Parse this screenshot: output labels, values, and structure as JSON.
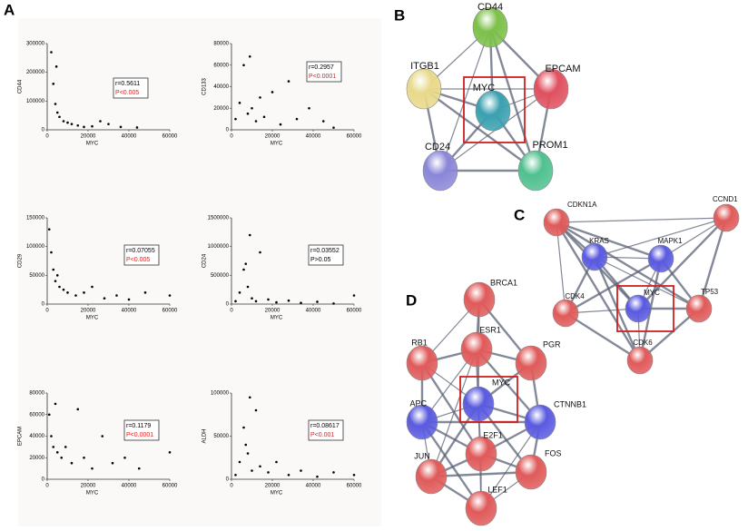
{
  "panel_labels": [
    "A",
    "B",
    "C",
    "D"
  ],
  "chart_data": [
    {
      "type": "scatter",
      "xlabel": "MYC",
      "ylabel": "CD44",
      "xlim": [
        0,
        60000
      ],
      "xticks": [
        0,
        20000,
        40000,
        60000
      ],
      "ylim": [
        0,
        300000
      ],
      "yticks": [
        0,
        100000,
        200000,
        300000
      ],
      "color": "#000000",
      "annotations": [
        {
          "text": "r=0.5611",
          "color": "#000000"
        },
        {
          "text": "P<0.005",
          "color": "#e02020"
        }
      ],
      "x": [
        2000,
        3000,
        4000,
        5000,
        6000,
        8000,
        10000,
        12000,
        15000,
        18000,
        22000,
        26000,
        30000,
        36000,
        44000,
        4500
      ],
      "values": [
        270000,
        160000,
        90000,
        60000,
        45000,
        30000,
        25000,
        20000,
        15000,
        10000,
        12000,
        30000,
        20000,
        10000,
        8000,
        220000
      ]
    },
    {
      "type": "scatter",
      "xlabel": "MYC",
      "ylabel": "CD133",
      "xlim": [
        0,
        60000
      ],
      "xticks": [
        0,
        20000,
        40000,
        60000
      ],
      "ylim": [
        0,
        80000
      ],
      "yticks": [
        0,
        20000,
        40000,
        60000,
        80000
      ],
      "color": "#000000",
      "annotations": [
        {
          "text": "r=0.2957",
          "color": "#000000"
        },
        {
          "text": "P<0.0001",
          "color": "#e02020"
        }
      ],
      "x": [
        2000,
        4000,
        6000,
        8000,
        9000,
        10000,
        12000,
        14000,
        16000,
        20000,
        24000,
        28000,
        32000,
        38000,
        45000,
        50000
      ],
      "values": [
        10000,
        25000,
        60000,
        15000,
        68000,
        20000,
        8000,
        30000,
        12000,
        35000,
        5000,
        45000,
        10000,
        20000,
        8000,
        2000
      ]
    },
    {
      "type": "scatter",
      "xlabel": "MYC",
      "ylabel": "CD29",
      "xlim": [
        0,
        60000
      ],
      "xticks": [
        0,
        20000,
        40000,
        60000
      ],
      "ylim": [
        0,
        150000
      ],
      "yticks": [
        0,
        50000,
        100000,
        150000
      ],
      "color": "#000000",
      "annotations": [
        {
          "text": "r=0.07055",
          "color": "#000000"
        },
        {
          "text": "P<0.005",
          "color": "#e02020"
        }
      ],
      "x": [
        1000,
        2000,
        3000,
        4000,
        6000,
        8000,
        10000,
        14000,
        18000,
        22000,
        28000,
        34000,
        40000,
        48000,
        60000,
        5000
      ],
      "values": [
        130000,
        90000,
        60000,
        40000,
        30000,
        25000,
        20000,
        15000,
        20000,
        30000,
        10000,
        15000,
        8000,
        20000,
        15000,
        50000
      ]
    },
    {
      "type": "scatter",
      "xlabel": "MYC",
      "ylabel": "CD24",
      "xlim": [
        0,
        60000
      ],
      "xticks": [
        0,
        20000,
        40000,
        60000
      ],
      "ylim": [
        0,
        1500000
      ],
      "yticks": [
        0,
        500000,
        1000000,
        1500000
      ],
      "color": "#000000",
      "annotations": [
        {
          "text": "r=0.03552",
          "color": "#000000"
        },
        {
          "text": "P>0.05",
          "color": "#000000"
        }
      ],
      "x": [
        2000,
        4000,
        6000,
        8000,
        9000,
        10000,
        12000,
        14000,
        18000,
        22000,
        28000,
        34000,
        42000,
        50000,
        60000,
        7000
      ],
      "values": [
        50000,
        200000,
        600000,
        300000,
        1200000,
        100000,
        50000,
        900000,
        80000,
        30000,
        60000,
        20000,
        40000,
        10000,
        150000,
        700000
      ]
    },
    {
      "type": "scatter",
      "xlabel": "MYC",
      "ylabel": "EPCAM",
      "xlim": [
        0,
        60000
      ],
      "xticks": [
        0,
        20000,
        40000,
        60000
      ],
      "ylim": [
        0,
        80000
      ],
      "yticks": [
        0,
        20000,
        40000,
        60000,
        80000
      ],
      "color": "#000000",
      "annotations": [
        {
          "text": "r=0.1179",
          "color": "#000000"
        },
        {
          "text": "P<0.0001",
          "color": "#e02020"
        }
      ],
      "x": [
        1000,
        2000,
        3000,
        5000,
        7000,
        9000,
        12000,
        15000,
        18000,
        22000,
        27000,
        32000,
        38000,
        45000,
        60000,
        4000
      ],
      "values": [
        60000,
        40000,
        30000,
        25000,
        20000,
        30000,
        15000,
        65000,
        20000,
        10000,
        40000,
        15000,
        20000,
        10000,
        25000,
        70000
      ]
    },
    {
      "type": "scatter",
      "xlabel": "MYC",
      "ylabel": "ALDH",
      "xlim": [
        0,
        60000
      ],
      "xticks": [
        0,
        20000,
        40000,
        60000
      ],
      "ylim": [
        0,
        100000
      ],
      "yticks": [
        0,
        50000,
        100000
      ],
      "color": "#000000",
      "annotations": [
        {
          "text": "r=0.08617",
          "color": "#000000"
        },
        {
          "text": "P<0.001",
          "color": "#e02020"
        }
      ],
      "x": [
        2000,
        4000,
        6000,
        8000,
        9000,
        10000,
        12000,
        14000,
        18000,
        22000,
        28000,
        34000,
        42000,
        50000,
        60000,
        7000
      ],
      "values": [
        5000,
        20000,
        60000,
        30000,
        95000,
        10000,
        80000,
        15000,
        8000,
        20000,
        5000,
        10000,
        3000,
        8000,
        5000,
        40000
      ]
    }
  ],
  "networks": [
    {
      "nodes": [
        {
          "label": "CD44",
          "color": "#7cc04a"
        },
        {
          "label": "ITGB1",
          "color": "#e8d98a"
        },
        {
          "label": "MYC",
          "color": "#3aa0b0"
        },
        {
          "label": "EPCAM",
          "color": "#e05060"
        },
        {
          "label": "CD24",
          "color": "#8a86d8"
        },
        {
          "label": "PROM1",
          "color": "#50c090"
        }
      ]
    },
    {
      "nodes": [
        {
          "label": "CDKN1A",
          "color": "#e05a5a"
        },
        {
          "label": "CCND1",
          "color": "#e05a5a"
        },
        {
          "label": "KRAS",
          "color": "#5a5ae0"
        },
        {
          "label": "MAPK1",
          "color": "#5a5ae0"
        },
        {
          "label": "CDK4",
          "color": "#e05a5a"
        },
        {
          "label": "MYC",
          "color": "#5a5ae0"
        },
        {
          "label": "TP53",
          "color": "#e05a5a"
        },
        {
          "label": "CDK6",
          "color": "#e05a5a"
        }
      ]
    },
    {
      "nodes": [
        {
          "label": "BRCA1",
          "color": "#e05a5a"
        },
        {
          "label": "RB1",
          "color": "#e05a5a"
        },
        {
          "label": "ESR1",
          "color": "#e05a5a"
        },
        {
          "label": "PGR",
          "color": "#e05a5a"
        },
        {
          "label": "APC",
          "color": "#5a5ae0"
        },
        {
          "label": "MYC",
          "color": "#5a5ae0"
        },
        {
          "label": "CTNNB1",
          "color": "#5a5ae0"
        },
        {
          "label": "E2F1",
          "color": "#e05a5a"
        },
        {
          "label": "JUN",
          "color": "#e05a5a"
        },
        {
          "label": "FOS",
          "color": "#e05a5a"
        },
        {
          "label": "LEF1",
          "color": "#e05a5a"
        }
      ]
    }
  ]
}
